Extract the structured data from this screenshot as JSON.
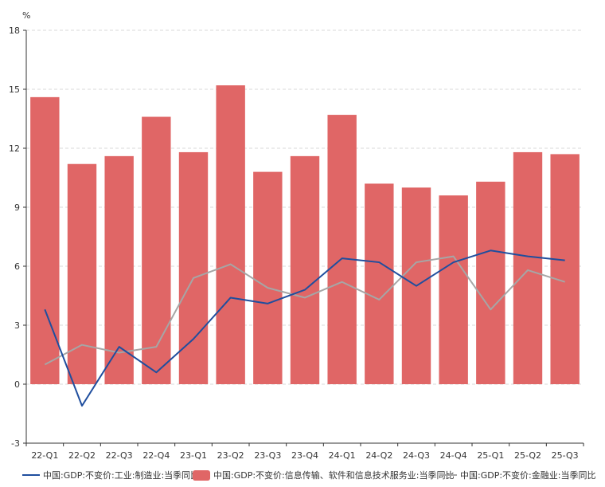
{
  "chart_data": {
    "type": "bar",
    "ylabel": "%",
    "ylim": [
      -3,
      18
    ],
    "yticks": [
      -3,
      0,
      3,
      6,
      9,
      12,
      15,
      18
    ],
    "grid": true,
    "legend_position": "bottom",
    "categories": [
      "22-Q1",
      "22-Q2",
      "22-Q3",
      "22-Q4",
      "23-Q1",
      "23-Q2",
      "23-Q3",
      "23-Q4",
      "24-Q1",
      "24-Q2",
      "24-Q3",
      "24-Q4",
      "25-Q1",
      "25-Q2",
      "25-Q3"
    ],
    "series": [
      {
        "name": "中国:GDP:不变价:工业:制造业:当季同比",
        "type": "line",
        "color": "#1f4e9e",
        "values": [
          3.8,
          -1.1,
          1.9,
          0.6,
          2.3,
          4.4,
          4.1,
          4.8,
          6.4,
          6.2,
          5.0,
          6.2,
          6.8,
          6.5,
          6.3
        ]
      },
      {
        "name": "中国:GDP:不变价:信息传输、软件和信息技术服务业:当季同比",
        "type": "bar",
        "color": "#e06666",
        "values": [
          14.6,
          11.2,
          11.6,
          13.6,
          11.8,
          15.2,
          10.8,
          11.6,
          13.7,
          10.2,
          10.0,
          9.6,
          10.3,
          11.8,
          11.7
        ]
      },
      {
        "name": "中国:GDP:不变价:金融业:当季同比",
        "type": "line",
        "color": "#a6a6a6",
        "values": [
          1.0,
          2.0,
          1.6,
          1.9,
          5.4,
          6.1,
          4.9,
          4.4,
          5.2,
          4.3,
          6.2,
          6.5,
          3.8,
          5.8,
          5.2
        ]
      }
    ]
  }
}
